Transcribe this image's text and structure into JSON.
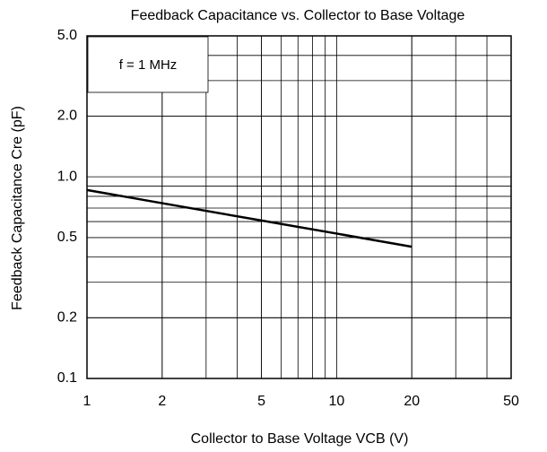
{
  "chart_data": {
    "type": "line",
    "title": "Feedback Capacitance vs. Collector to Base Voltage",
    "x_label": "Collector to Base Voltage VCB (V)",
    "y_label": "Feedback Capacitance Cre (pF)",
    "annotation": "f = 1 MHz",
    "x": [
      1,
      2,
      5,
      10,
      20
    ],
    "series": [
      {
        "name": "Cre",
        "color": "#000000",
        "values": [
          0.86,
          0.74,
          0.607,
          0.523,
          0.45
        ]
      }
    ],
    "xscale": "log",
    "yscale": "log",
    "xlim": [
      1,
      50
    ],
    "ylim": [
      0.1,
      5
    ],
    "xticks": [
      1,
      2,
      5,
      10,
      20,
      50
    ],
    "yticks": [
      0.1,
      0.2,
      0.5,
      {
        "value": 1,
        "label": "1.0"
      },
      {
        "value": 2,
        "label": "2.0"
      },
      {
        "value": 5,
        "label": "5.0"
      }
    ],
    "grid": true
  }
}
